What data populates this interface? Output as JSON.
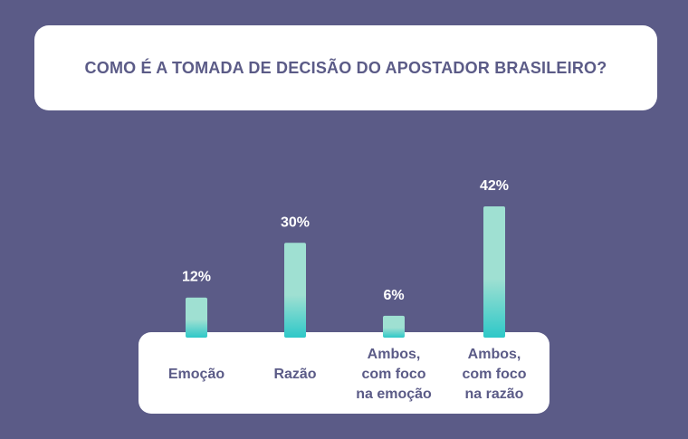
{
  "chart_data": {
    "type": "bar",
    "title": "COMO É A TOMADA DE DECISÃO DO APOSTADOR BRASILEIRO?",
    "categories": [
      [
        "Emoção"
      ],
      [
        "Razão"
      ],
      [
        "Ambos,",
        "com foco",
        "na emoção"
      ],
      [
        "Ambos,",
        "com foco",
        "na razão"
      ]
    ],
    "values": [
      12,
      30,
      6,
      42
    ],
    "value_labels": [
      "12%",
      "30%",
      "6%",
      "42%"
    ],
    "unit": "%",
    "ylim": [
      0,
      42
    ],
    "grid": false,
    "legend": "none"
  },
  "colors": {
    "background": "#5b5b87",
    "card": "#ffffff",
    "text_dark": "#5b5b87",
    "bar_top": "#9fe0d2",
    "bar_bottom": "#2ec8c8"
  }
}
